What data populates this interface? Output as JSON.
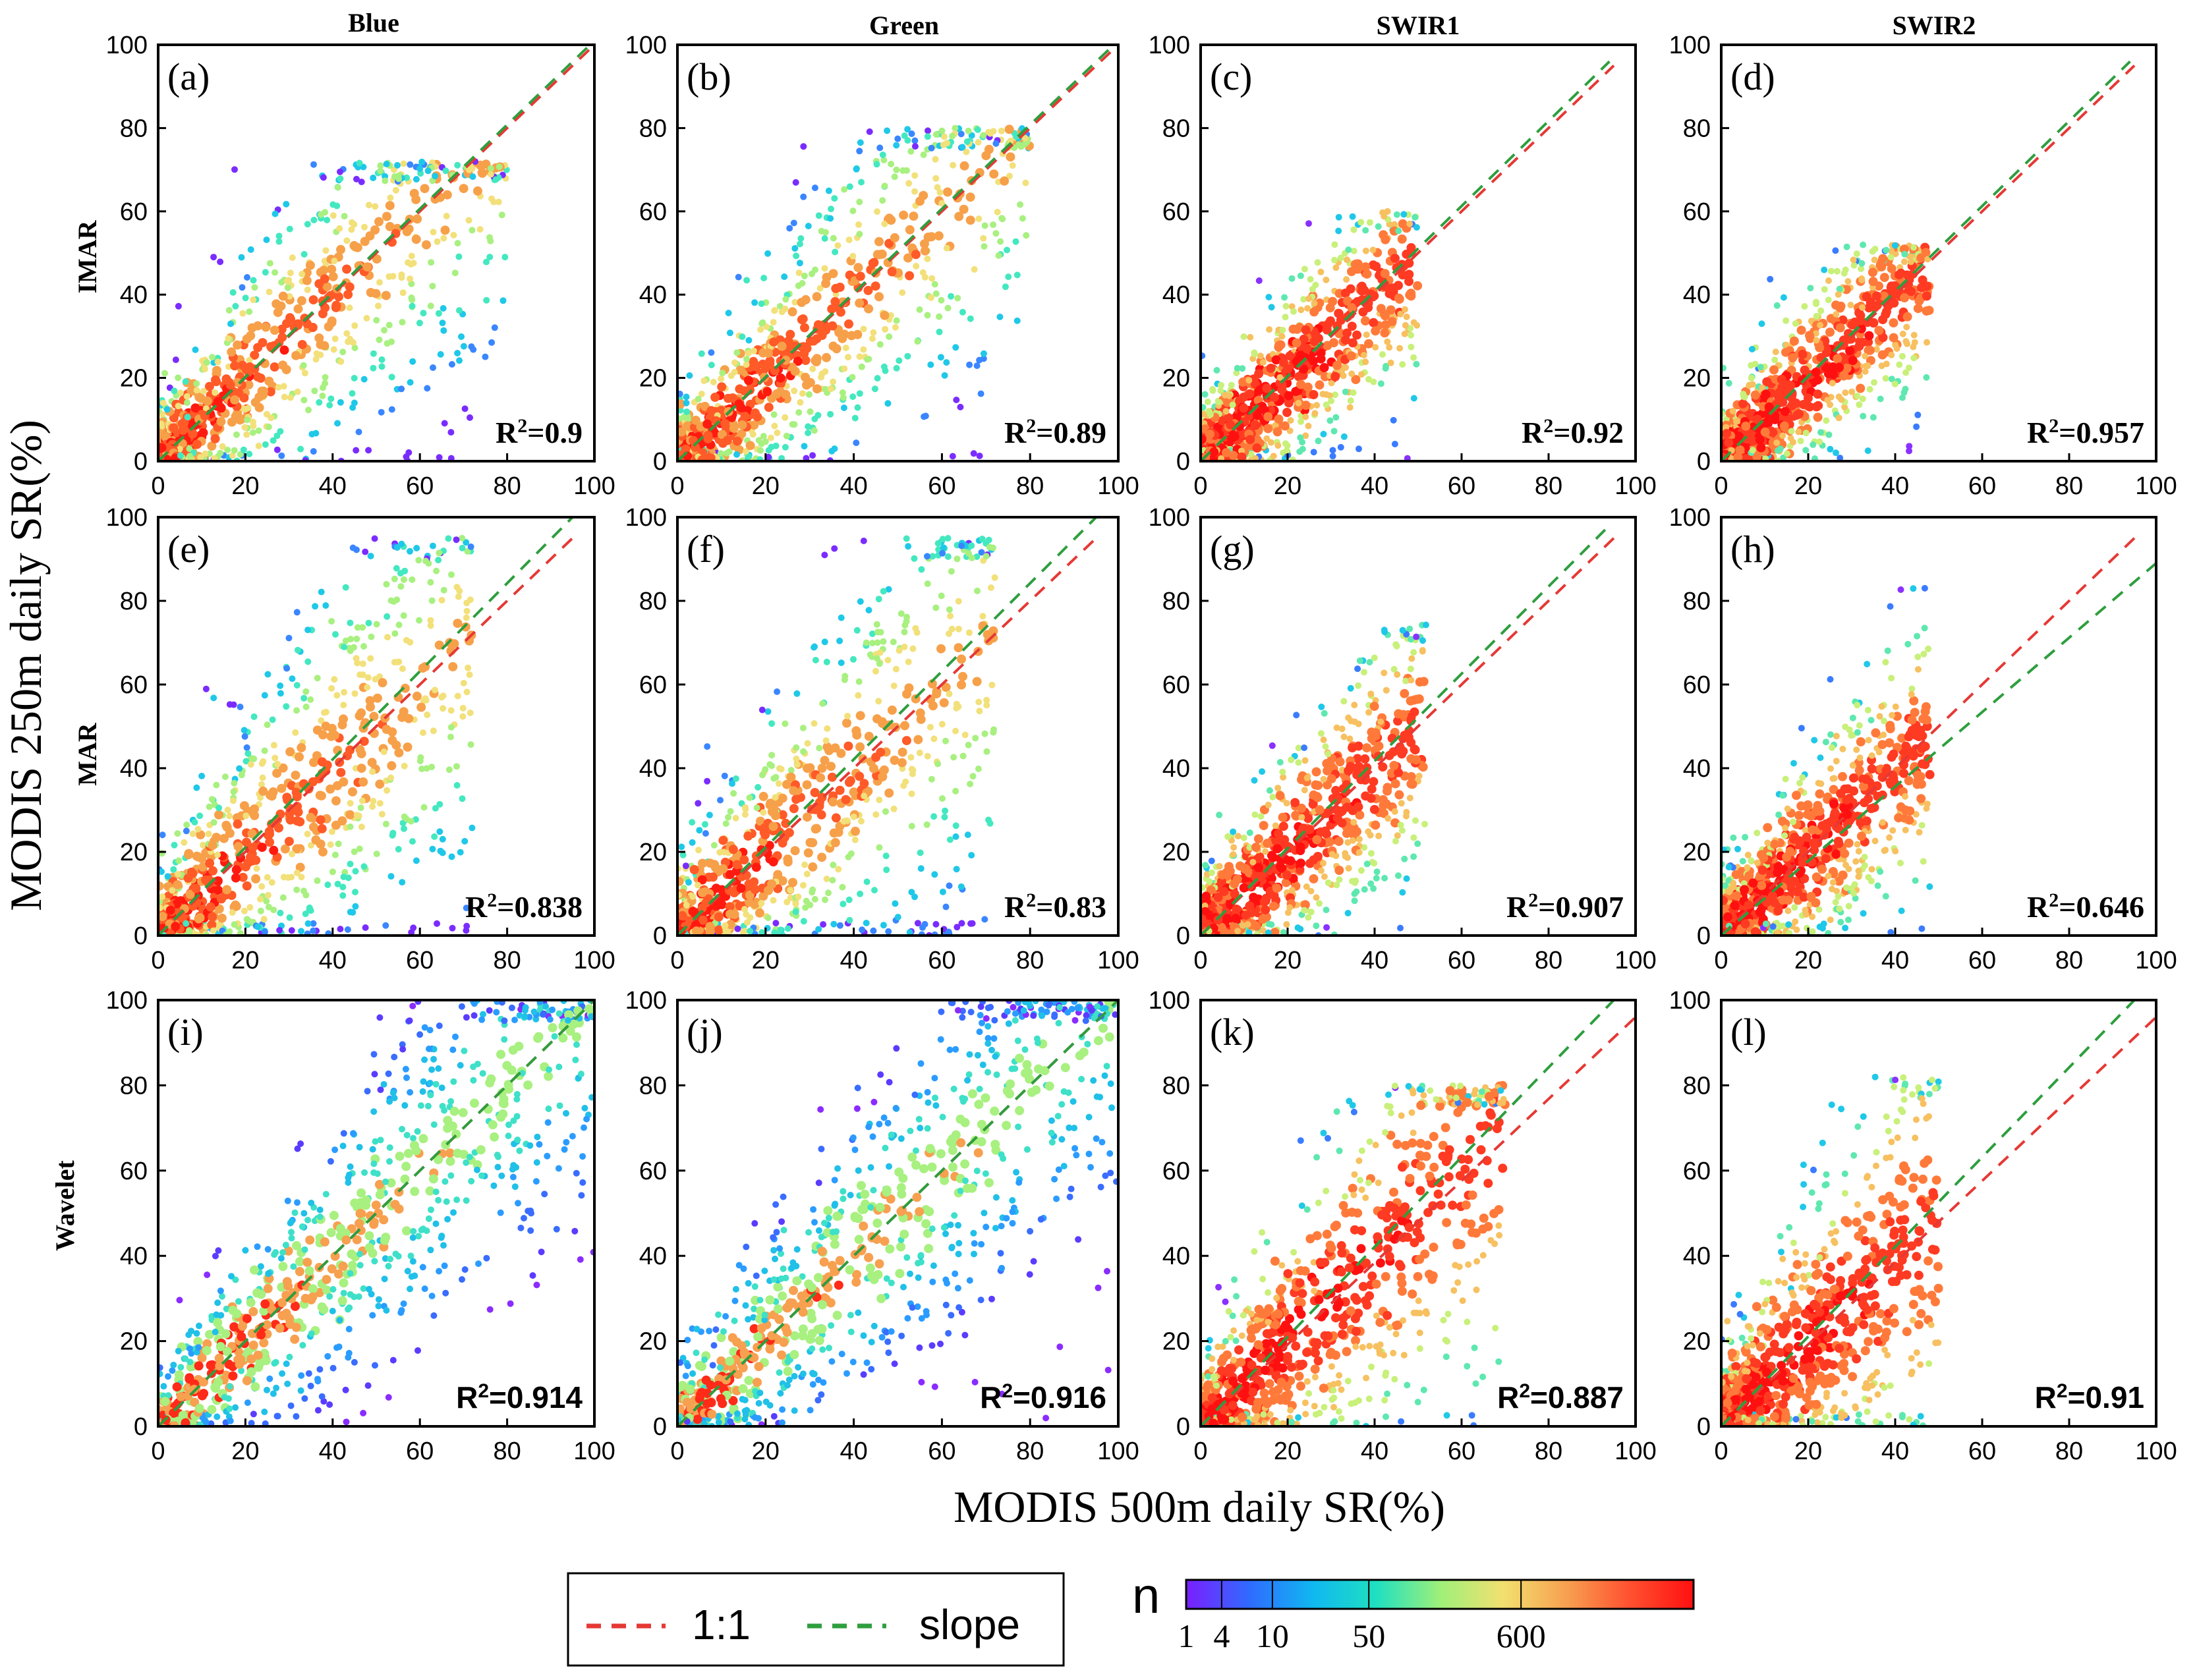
{
  "figure": {
    "x_axis_label": "MODIS 500m daily SR(%)",
    "y_axis_label": "MODIS 250m daily SR(%)",
    "columns": [
      "Blue",
      "Green",
      "SWIR1",
      "SWIR2"
    ],
    "rows": [
      "IMAR",
      "MAR",
      "Wavelet"
    ]
  },
  "legend": {
    "items": [
      {
        "label": "1:1",
        "color": "#e53935"
      },
      {
        "label": "slope",
        "color": "#2e9e3e"
      }
    ]
  },
  "colorbar": {
    "label": "n",
    "ticks": [
      "1",
      "4",
      "10",
      "50",
      "600"
    ],
    "colors": [
      "#7a1fff",
      "#2f6bff",
      "#10b8f0",
      "#1fe0c0",
      "#9ef07a",
      "#f2e070",
      "#f7a050",
      "#ff5030",
      "#ff1010"
    ]
  },
  "chart_data": [
    {
      "id": "a",
      "panel_label": "(a)",
      "type": "scatter",
      "band": "Blue",
      "method": "IMAR",
      "r2_text": "R",
      "r2_value": "=0.9",
      "xlim": [
        0,
        100
      ],
      "ylim": [
        0,
        100
      ],
      "xticks": [
        0,
        20,
        40,
        60,
        80,
        100
      ],
      "yticks": [
        0,
        20,
        40,
        60,
        80,
        100
      ],
      "x_tick_labels": [
        "0",
        "20",
        "40",
        "60",
        "80",
        "100"
      ],
      "y_tick_labels": [
        "0",
        "20",
        "40",
        "60",
        "80",
        "100"
      ],
      "one_to_one": {
        "x": [
          0,
          100
        ],
        "y": [
          0,
          100
        ]
      },
      "slope_line": {
        "x": [
          0,
          100
        ],
        "y": [
          0,
          101
        ]
      },
      "density_cloud": {
        "x_max": 80,
        "y_max": 72,
        "spread": 0.55,
        "style": "warm"
      }
    },
    {
      "id": "b",
      "panel_label": "(b)",
      "type": "scatter",
      "band": "Green",
      "method": "IMAR",
      "r2_text": "R",
      "r2_value": "=0.89",
      "xlim": [
        0,
        100
      ],
      "ylim": [
        0,
        100
      ],
      "xticks": [
        0,
        20,
        40,
        60,
        80,
        100
      ],
      "yticks": [
        0,
        20,
        40,
        60,
        80,
        100
      ],
      "x_tick_labels": [
        "0",
        "20",
        "40",
        "60",
        "80",
        "100"
      ],
      "y_tick_labels": [
        "0",
        "20",
        "40",
        "60",
        "80",
        "100"
      ],
      "one_to_one": {
        "x": [
          0,
          100
        ],
        "y": [
          0,
          100
        ]
      },
      "slope_line": {
        "x": [
          0,
          100
        ],
        "y": [
          0,
          101
        ]
      },
      "density_cloud": {
        "x_max": 80,
        "y_max": 80,
        "spread": 0.55,
        "style": "warm"
      }
    },
    {
      "id": "c",
      "panel_label": "(c)",
      "type": "scatter",
      "band": "SWIR1",
      "method": "IMAR",
      "r2_text": "R",
      "r2_value": "=0.92",
      "xlim": [
        0,
        100
      ],
      "ylim": [
        0,
        100
      ],
      "xticks": [
        0,
        20,
        40,
        60,
        80,
        100
      ],
      "yticks": [
        0,
        20,
        40,
        60,
        80,
        100
      ],
      "x_tick_labels": [
        "0",
        "20",
        "40",
        "60",
        "80",
        "100"
      ],
      "y_tick_labels": [
        "0",
        "20",
        "40",
        "60",
        "80",
        "100"
      ],
      "one_to_one": {
        "x": [
          0,
          95
        ],
        "y": [
          0,
          95
        ]
      },
      "slope_line": {
        "x": [
          0,
          94
        ],
        "y": [
          0,
          96
        ]
      },
      "density_cloud": {
        "x_max": 50,
        "y_max": 60,
        "spread": 0.35,
        "style": "hot"
      }
    },
    {
      "id": "d",
      "panel_label": "(d)",
      "type": "scatter",
      "band": "SWIR2",
      "method": "IMAR",
      "r2_text": "R",
      "r2_value": "=0.957",
      "xlim": [
        0,
        100
      ],
      "ylim": [
        0,
        100
      ],
      "xticks": [
        0,
        20,
        40,
        60,
        80,
        100
      ],
      "yticks": [
        0,
        20,
        40,
        60,
        80,
        100
      ],
      "x_tick_labels": [
        "0",
        "20",
        "40",
        "60",
        "80",
        "100"
      ],
      "y_tick_labels": [
        "0",
        "20",
        "40",
        "60",
        "80",
        "100"
      ],
      "one_to_one": {
        "x": [
          0,
          95
        ],
        "y": [
          0,
          95
        ]
      },
      "slope_line": {
        "x": [
          0,
          94
        ],
        "y": [
          0,
          96
        ]
      },
      "density_cloud": {
        "x_max": 48,
        "y_max": 52,
        "spread": 0.35,
        "style": "hot"
      }
    },
    {
      "id": "e",
      "panel_label": "(e)",
      "type": "scatter",
      "band": "Blue",
      "method": "MAR",
      "r2_text": "R",
      "r2_value": "=0.838",
      "xlim": [
        0,
        100
      ],
      "ylim": [
        0,
        100
      ],
      "xticks": [
        0,
        20,
        40,
        60,
        80,
        100
      ],
      "yticks": [
        0,
        20,
        40,
        60,
        80,
        100
      ],
      "x_tick_labels": [
        "0",
        "20",
        "40",
        "60",
        "80",
        "100"
      ],
      "y_tick_labels": [
        "0",
        "20",
        "40",
        "60",
        "80",
        "100"
      ],
      "one_to_one": {
        "x": [
          0,
          95
        ],
        "y": [
          0,
          95
        ]
      },
      "slope_line": {
        "x": [
          0,
          95
        ],
        "y": [
          0,
          100
        ]
      },
      "density_cloud": {
        "x_max": 72,
        "y_max": 95,
        "spread": 0.8,
        "style": "warm"
      }
    },
    {
      "id": "f",
      "panel_label": "(f)",
      "type": "scatter",
      "band": "Green",
      "method": "MAR",
      "r2_text": "R",
      "r2_value": "=0.83",
      "xlim": [
        0,
        100
      ],
      "ylim": [
        0,
        100
      ],
      "xticks": [
        0,
        20,
        40,
        60,
        80,
        100
      ],
      "yticks": [
        0,
        20,
        40,
        60,
        80,
        100
      ],
      "x_tick_labels": [
        "0",
        "20",
        "40",
        "60",
        "80",
        "100"
      ],
      "y_tick_labels": [
        "0",
        "20",
        "40",
        "60",
        "80",
        "100"
      ],
      "one_to_one": {
        "x": [
          0,
          95
        ],
        "y": [
          0,
          95
        ]
      },
      "slope_line": {
        "x": [
          0,
          95
        ],
        "y": [
          0,
          100
        ]
      },
      "density_cloud": {
        "x_max": 72,
        "y_max": 95,
        "spread": 0.8,
        "style": "warm"
      }
    },
    {
      "id": "g",
      "panel_label": "(g)",
      "type": "scatter",
      "band": "SWIR1",
      "method": "MAR",
      "r2_text": "R",
      "r2_value": "=0.907",
      "xlim": [
        0,
        100
      ],
      "ylim": [
        0,
        100
      ],
      "xticks": [
        0,
        20,
        40,
        60,
        80,
        100
      ],
      "yticks": [
        0,
        20,
        40,
        60,
        80,
        100
      ],
      "x_tick_labels": [
        "0",
        "20",
        "40",
        "60",
        "80",
        "100"
      ],
      "y_tick_labels": [
        "0",
        "20",
        "40",
        "60",
        "80",
        "100"
      ],
      "one_to_one": {
        "x": [
          0,
          95
        ],
        "y": [
          0,
          95
        ]
      },
      "slope_line": {
        "x": [
          0,
          93
        ],
        "y": [
          0,
          97
        ]
      },
      "density_cloud": {
        "x_max": 52,
        "y_max": 75,
        "spread": 0.45,
        "style": "hot"
      }
    },
    {
      "id": "h",
      "panel_label": "(h)",
      "type": "scatter",
      "band": "SWIR2",
      "method": "MAR",
      "r2_text": "R",
      "r2_value": "=0.646",
      "xlim": [
        0,
        100
      ],
      "ylim": [
        0,
        100
      ],
      "xticks": [
        0,
        20,
        40,
        60,
        80,
        100
      ],
      "yticks": [
        0,
        20,
        40,
        60,
        80,
        100
      ],
      "x_tick_labels": [
        "0",
        "20",
        "40",
        "60",
        "80",
        "100"
      ],
      "y_tick_labels": [
        "0",
        "20",
        "40",
        "60",
        "80",
        "100"
      ],
      "one_to_one": {
        "x": [
          0,
          95
        ],
        "y": [
          0,
          95
        ]
      },
      "slope_line": {
        "x": [
          0,
          100
        ],
        "y": [
          0,
          89
        ]
      },
      "density_cloud": {
        "x_max": 48,
        "y_max": 85,
        "spread": 0.45,
        "style": "hot"
      }
    },
    {
      "id": "i",
      "panel_label": "(i)",
      "type": "scatter",
      "band": "Blue",
      "method": "Wavelet",
      "r2_text": "R",
      "r2_value": "=0.914",
      "xlim": [
        0,
        100
      ],
      "ylim": [
        0,
        100
      ],
      "xticks": [
        0,
        20,
        40,
        60,
        80,
        100
      ],
      "yticks": [
        0,
        20,
        40,
        60,
        80,
        100
      ],
      "x_tick_labels": [
        "0",
        "20",
        "40",
        "60",
        "80",
        "100"
      ],
      "y_tick_labels": [
        "0",
        "20",
        "40",
        "60",
        "80",
        "100"
      ],
      "one_to_one": {
        "x": [
          0,
          100
        ],
        "y": [
          0,
          100
        ]
      },
      "slope_line": {
        "x": [
          0,
          100
        ],
        "y": [
          0,
          100
        ]
      },
      "density_cloud": {
        "x_max": 100,
        "y_max": 100,
        "spread": 0.45,
        "style": "cool"
      }
    },
    {
      "id": "j",
      "panel_label": "(j)",
      "type": "scatter",
      "band": "Green",
      "method": "Wavelet",
      "r2_text": "R",
      "r2_value": "=0.916",
      "xlim": [
        0,
        100
      ],
      "ylim": [
        0,
        100
      ],
      "xticks": [
        0,
        20,
        40,
        60,
        80,
        100
      ],
      "yticks": [
        0,
        20,
        40,
        60,
        80,
        100
      ],
      "x_tick_labels": [
        "0",
        "20",
        "40",
        "60",
        "80",
        "100"
      ],
      "y_tick_labels": [
        "0",
        "20",
        "40",
        "60",
        "80",
        "100"
      ],
      "one_to_one": {
        "x": [
          0,
          100
        ],
        "y": [
          0,
          100
        ]
      },
      "slope_line": {
        "x": [
          0,
          100
        ],
        "y": [
          0,
          100
        ]
      },
      "density_cloud": {
        "x_max": 100,
        "y_max": 100,
        "spread": 0.45,
        "style": "cool"
      }
    },
    {
      "id": "k",
      "panel_label": "(k)",
      "type": "scatter",
      "band": "SWIR1",
      "method": "Wavelet",
      "r2_text": "R",
      "r2_value": "=0.887",
      "xlim": [
        0,
        100
      ],
      "ylim": [
        0,
        100
      ],
      "xticks": [
        0,
        20,
        40,
        60,
        80,
        100
      ],
      "yticks": [
        0,
        20,
        40,
        60,
        80,
        100
      ],
      "x_tick_labels": [
        "0",
        "20",
        "40",
        "60",
        "80",
        "100"
      ],
      "y_tick_labels": [
        "0",
        "20",
        "40",
        "60",
        "80",
        "100"
      ],
      "one_to_one": {
        "x": [
          0,
          100
        ],
        "y": [
          0,
          96
        ]
      },
      "slope_line": {
        "x": [
          0,
          95
        ],
        "y": [
          0,
          100
        ]
      },
      "density_cloud": {
        "x_max": 70,
        "y_max": 80,
        "spread": 0.7,
        "style": "hot"
      }
    },
    {
      "id": "l",
      "panel_label": "(l)",
      "type": "scatter",
      "band": "SWIR2",
      "method": "Wavelet",
      "r2_text": "R",
      "r2_value": "=0.91",
      "xlim": [
        0,
        100
      ],
      "ylim": [
        0,
        100
      ],
      "xticks": [
        0,
        20,
        40,
        60,
        80,
        100
      ],
      "yticks": [
        0,
        20,
        40,
        60,
        80,
        100
      ],
      "x_tick_labels": [
        "0",
        "20",
        "40",
        "60",
        "80",
        "100"
      ],
      "y_tick_labels": [
        "0",
        "20",
        "40",
        "60",
        "80",
        "100"
      ],
      "one_to_one": {
        "x": [
          0,
          100
        ],
        "y": [
          0,
          96
        ]
      },
      "slope_line": {
        "x": [
          0,
          95
        ],
        "y": [
          0,
          100
        ]
      },
      "density_cloud": {
        "x_max": 50,
        "y_max": 82,
        "spread": 0.9,
        "style": "hot"
      }
    }
  ]
}
